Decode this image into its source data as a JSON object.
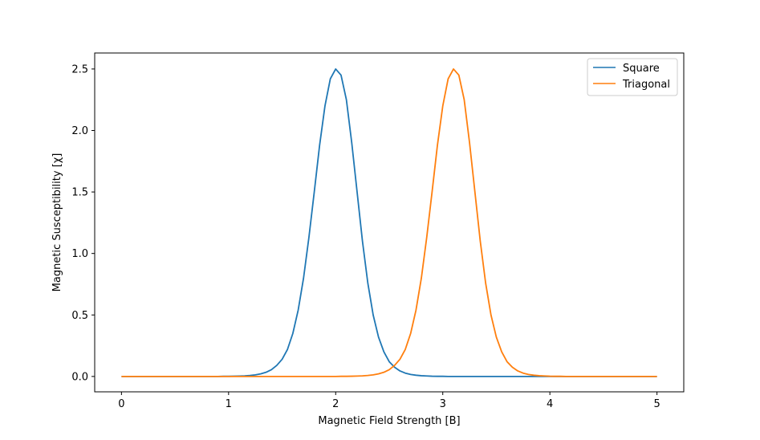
{
  "chart_data": {
    "type": "line",
    "title": "",
    "xlabel": "Magnetic Field Strength [B]",
    "ylabel": "Magnetic Susceptibility [χ]",
    "xlim": [
      -0.25,
      5.25
    ],
    "ylim": [
      -0.125,
      2.63
    ],
    "x_ticks": [
      0,
      1,
      2,
      3,
      4,
      5
    ],
    "x_tick_labels": [
      "0",
      "1",
      "2",
      "3",
      "4",
      "5"
    ],
    "y_ticks": [
      0.0,
      0.5,
      1.0,
      1.5,
      2.0,
      2.5
    ],
    "y_tick_labels": [
      "0.0",
      "0.5",
      "1.0",
      "1.5",
      "2.0",
      "2.5"
    ],
    "grid": false,
    "legend_position": "top-right",
    "x": [
      0.0,
      0.05,
      0.1,
      0.15,
      0.2,
      0.25,
      0.3,
      0.35,
      0.4,
      0.45,
      0.5,
      0.55,
      0.6,
      0.65,
      0.7,
      0.75,
      0.8,
      0.85,
      0.9,
      0.95,
      1.0,
      1.05,
      1.1,
      1.15,
      1.2,
      1.25,
      1.3,
      1.35,
      1.4,
      1.45,
      1.5,
      1.55,
      1.6,
      1.65,
      1.7,
      1.75,
      1.8,
      1.85,
      1.9,
      1.95,
      2.0,
      2.05,
      2.1,
      2.15,
      2.2,
      2.25,
      2.3,
      2.35,
      2.4,
      2.45,
      2.5,
      2.55,
      2.6,
      2.65,
      2.7,
      2.75,
      2.8,
      2.85,
      2.9,
      2.95,
      3.0,
      3.05,
      3.1,
      3.15,
      3.2,
      3.25,
      3.3,
      3.35,
      3.4,
      3.45,
      3.5,
      3.55,
      3.6,
      3.65,
      3.7,
      3.75,
      3.8,
      3.85,
      3.9,
      3.95,
      4.0,
      4.05,
      4.1,
      4.15,
      4.2,
      4.25,
      4.3,
      4.35,
      4.4,
      4.45,
      4.5,
      4.55,
      4.6,
      4.65,
      4.7,
      4.75,
      4.8,
      4.85,
      4.9,
      4.95,
      5.0
    ],
    "series": [
      {
        "name": "Square",
        "color": "#1f77b4",
        "values": [
          0.0,
          0.0,
          0.0,
          0.0,
          0.0,
          0.0,
          0.0,
          0.0,
          0.0,
          0.0,
          0.0,
          0.0,
          0.0,
          0.0,
          0.0,
          0.0,
          0.0,
          0.0,
          0.0,
          0.001,
          0.001,
          0.002,
          0.003,
          0.005,
          0.008,
          0.013,
          0.021,
          0.034,
          0.055,
          0.09,
          0.14,
          0.22,
          0.35,
          0.54,
          0.8,
          1.13,
          1.5,
          1.88,
          2.2,
          2.42,
          2.5,
          2.45,
          2.25,
          1.9,
          1.5,
          1.1,
          0.76,
          0.5,
          0.32,
          0.2,
          0.12,
          0.075,
          0.045,
          0.027,
          0.016,
          0.01,
          0.006,
          0.004,
          0.002,
          0.001,
          0.001,
          0.0,
          0.0,
          0.0,
          0.0,
          0.0,
          0.0,
          0.0,
          0.0,
          0.0,
          0.0,
          0.0,
          0.0,
          0.0,
          0.0,
          0.0,
          0.0,
          0.0,
          0.0,
          0.0,
          0.0,
          0.0,
          0.0,
          0.0,
          0.0,
          0.0,
          0.0,
          0.0,
          0.0,
          0.0,
          0.0,
          0.0,
          0.0,
          0.0,
          0.0,
          0.0,
          0.0,
          0.0,
          0.0,
          0.0,
          0.0
        ]
      },
      {
        "name": "Triagonal",
        "color": "#ff7f0e",
        "values": [
          0.0,
          0.0,
          0.0,
          0.0,
          0.0,
          0.0,
          0.0,
          0.0,
          0.0,
          0.0,
          0.0,
          0.0,
          0.0,
          0.0,
          0.0,
          0.0,
          0.0,
          0.0,
          0.0,
          0.0,
          0.0,
          0.0,
          0.0,
          0.0,
          0.0,
          0.0,
          0.0,
          0.0,
          0.0,
          0.0,
          0.0,
          0.0,
          0.0,
          0.0,
          0.0,
          0.0,
          0.0,
          0.0,
          0.0,
          0.0,
          0.0,
          0.001,
          0.001,
          0.002,
          0.003,
          0.005,
          0.008,
          0.013,
          0.021,
          0.034,
          0.055,
          0.09,
          0.14,
          0.22,
          0.35,
          0.54,
          0.8,
          1.13,
          1.5,
          1.88,
          2.2,
          2.42,
          2.5,
          2.45,
          2.25,
          1.9,
          1.5,
          1.1,
          0.76,
          0.5,
          0.32,
          0.2,
          0.12,
          0.075,
          0.045,
          0.027,
          0.016,
          0.01,
          0.006,
          0.004,
          0.002,
          0.001,
          0.001,
          0.0,
          0.0,
          0.0,
          0.0,
          0.0,
          0.0,
          0.0,
          0.0,
          0.0,
          0.0,
          0.0,
          0.0,
          0.0,
          0.0,
          0.0,
          0.0,
          0.0,
          0.0
        ]
      }
    ]
  }
}
